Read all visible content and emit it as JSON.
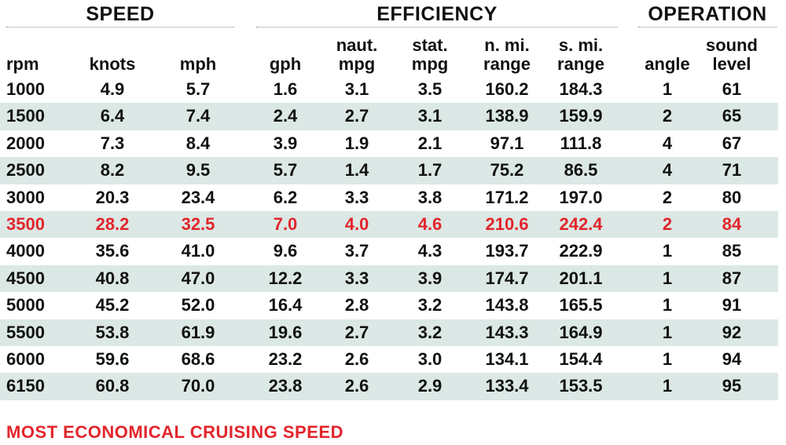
{
  "groups": {
    "speed": "SPEED",
    "efficiency": "EFFICIENCY",
    "operation": "OPERATION"
  },
  "columns": [
    {
      "key": "rpm",
      "label": "rpm"
    },
    {
      "key": "knots",
      "label": "knots"
    },
    {
      "key": "mph",
      "label": "mph"
    },
    {
      "key": "gph",
      "label": "gph"
    },
    {
      "key": "naut_mpg",
      "label": "naut.\nmpg"
    },
    {
      "key": "stat_mpg",
      "label": "stat.\nmpg"
    },
    {
      "key": "nmi_range",
      "label": "n. mi.\nrange"
    },
    {
      "key": "smi_range",
      "label": "s. mi.\nrange"
    },
    {
      "key": "angle",
      "label": "angle"
    },
    {
      "key": "sound",
      "label": "sound\nlevel"
    }
  ],
  "rows": [
    [
      "1000",
      "4.9",
      "5.7",
      "1.6",
      "3.1",
      "3.5",
      "160.2",
      "184.3",
      "1",
      "61"
    ],
    [
      "1500",
      "6.4",
      "7.4",
      "2.4",
      "2.7",
      "3.1",
      "138.9",
      "159.9",
      "2",
      "65"
    ],
    [
      "2000",
      "7.3",
      "8.4",
      "3.9",
      "1.9",
      "2.1",
      "97.1",
      "111.8",
      "4",
      "67"
    ],
    [
      "2500",
      "8.2",
      "9.5",
      "5.7",
      "1.4",
      "1.7",
      "75.2",
      "86.5",
      "4",
      "71"
    ],
    [
      "3000",
      "20.3",
      "23.4",
      "6.2",
      "3.3",
      "3.8",
      "171.2",
      "197.0",
      "2",
      "80"
    ],
    [
      "3500",
      "28.2",
      "32.5",
      "7.0",
      "4.0",
      "4.6",
      "210.6",
      "242.4",
      "2",
      "84"
    ],
    [
      "4000",
      "35.6",
      "41.0",
      "9.6",
      "3.7",
      "4.3",
      "193.7",
      "222.9",
      "1",
      "85"
    ],
    [
      "4500",
      "40.8",
      "47.0",
      "12.2",
      "3.3",
      "3.9",
      "174.7",
      "201.1",
      "1",
      "87"
    ],
    [
      "5000",
      "45.2",
      "52.0",
      "16.4",
      "2.8",
      "3.2",
      "143.8",
      "165.5",
      "1",
      "91"
    ],
    [
      "5500",
      "53.8",
      "61.9",
      "19.6",
      "2.7",
      "3.2",
      "143.3",
      "164.9",
      "1",
      "92"
    ],
    [
      "6000",
      "59.6",
      "68.6",
      "23.2",
      "2.6",
      "3.0",
      "134.1",
      "154.4",
      "1",
      "94"
    ],
    [
      "6150",
      "60.8",
      "70.0",
      "23.8",
      "2.6",
      "2.9",
      "133.4",
      "153.5",
      "1",
      "95"
    ]
  ],
  "highlight_row_index": 5,
  "colors": {
    "highlight": "#e2252b",
    "band": "#dbe8e5",
    "text": "#111111"
  },
  "footnote": "MOST ECONOMICAL CRUISING SPEED"
}
